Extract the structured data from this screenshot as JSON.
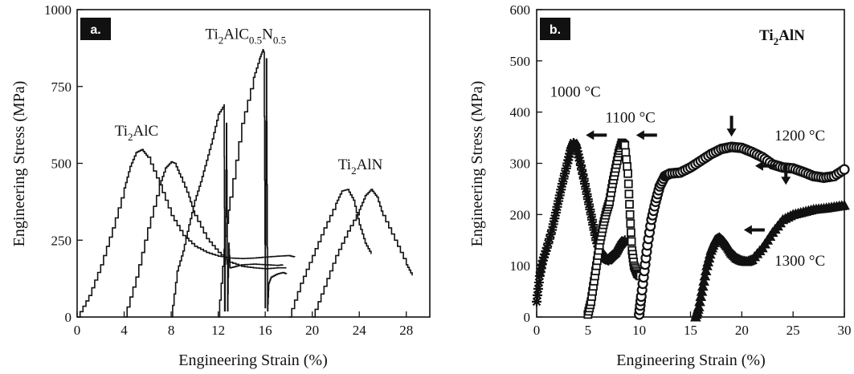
{
  "chart_data": [
    {
      "type": "line",
      "panel_label": "a.",
      "xlabel": "Engineering Strain (%)",
      "ylabel": "Engineering Stress (MPa)",
      "xlim": [
        0,
        30
      ],
      "ylim": [
        0,
        1000
      ],
      "xticks": [
        0,
        4,
        8,
        12,
        16,
        20,
        24,
        28
      ],
      "yticks": [
        0,
        250,
        500,
        750,
        1000
      ],
      "annotations": [
        {
          "label": "Ti",
          "sub": "2",
          "rest": "AlC",
          "sub2": "",
          "rest2": "",
          "sub3": "",
          "x": 3.2,
          "y": 590
        },
        {
          "label": "Ti",
          "sub": "2",
          "rest": "AlC",
          "sub2": "0.5",
          "rest2": "N",
          "sub3": "0.5",
          "x": 10.9,
          "y": 905
        },
        {
          "label": "Ti",
          "sub": "2",
          "rest": "AlN",
          "sub2": "",
          "rest2": "",
          "sub3": "",
          "x": 22.2,
          "y": 480
        }
      ],
      "series": [
        {
          "x": [
            0,
            1,
            2,
            3,
            4,
            4.5,
            5,
            5.5,
            6,
            7,
            8,
            9,
            10,
            11,
            12,
            13,
            14,
            15,
            16,
            17,
            18,
            18.5
          ],
          "y": [
            0,
            70,
            170,
            290,
            420,
            490,
            535,
            545,
            520,
            430,
            330,
            265,
            230,
            210,
            198,
            192,
            190,
            192,
            195,
            198,
            200,
            195
          ]
        },
        {
          "x": [
            4,
            5,
            6,
            7,
            7.5,
            8,
            8.3,
            8.8,
            9.5,
            10,
            11,
            12,
            13,
            14,
            15,
            16,
            17,
            17.8
          ],
          "y": [
            0,
            130,
            290,
            430,
            485,
            505,
            500,
            455,
            390,
            330,
            255,
            210,
            178,
            165,
            160,
            157,
            160,
            160
          ]
        },
        {
          "x": [
            8,
            8.5,
            9,
            9.5,
            10,
            10.5,
            11,
            11.5,
            12,
            12.5,
            12.55,
            12.7,
            12.8,
            12.9,
            13,
            13.5,
            14,
            15,
            16,
            17,
            17.5
          ],
          "y": [
            0,
            150,
            215,
            300,
            380,
            440,
            510,
            580,
            660,
            690,
            20,
            630,
            20,
            240,
            160,
            165,
            170,
            172,
            170,
            168,
            170
          ]
        },
        {
          "x": [
            12,
            12.5,
            13,
            14,
            15,
            15.5,
            15.8,
            15.9,
            16,
            16.1,
            16.2,
            16.3,
            16.5,
            17,
            17.5,
            17.8
          ],
          "y": [
            0,
            220,
            390,
            630,
            780,
            840,
            870,
            860,
            30,
            840,
            20,
            110,
            130,
            140,
            145,
            140
          ]
        },
        {
          "x": [
            18,
            19,
            20,
            21,
            22,
            22.5,
            23,
            23.5,
            24,
            24.5,
            25
          ],
          "y": [
            0,
            110,
            200,
            290,
            370,
            410,
            415,
            380,
            300,
            240,
            205
          ]
        },
        {
          "x": [
            20,
            21,
            22,
            23,
            24,
            24.5,
            25,
            25.5,
            26,
            27,
            28,
            28.5
          ],
          "y": [
            0,
            100,
            200,
            280,
            350,
            395,
            415,
            390,
            330,
            250,
            170,
            135
          ]
        }
      ]
    },
    {
      "type": "scatter",
      "panel_label": "b.",
      "title": "Ti2AlN",
      "title_parts": {
        "main": "Ti",
        "sub": "2",
        "rest": "AlN"
      },
      "xlabel": "Engineering Strain  (%)",
      "ylabel": "Engineering Stress  (MPa)",
      "xlim": [
        0,
        30
      ],
      "ylim": [
        0,
        600
      ],
      "xticks": [
        0,
        5,
        10,
        15,
        20,
        25,
        30
      ],
      "yticks": [
        0,
        100,
        200,
        300,
        400,
        500,
        600
      ],
      "series": [
        {
          "name": "1000 °C",
          "marker": "star",
          "x": [
            0,
            0.3,
            0.6,
            1,
            1.5,
            2,
            2.5,
            3,
            3.3,
            3.6,
            3.9,
            4.2,
            4.6,
            5,
            5.4,
            5.8,
            6.2,
            6.6,
            7,
            7.4,
            7.8,
            8.2,
            8.6
          ],
          "y": [
            30,
            80,
            110,
            135,
            170,
            215,
            260,
            300,
            325,
            340,
            330,
            305,
            270,
            230,
            190,
            150,
            125,
            115,
            110,
            118,
            125,
            140,
            150
          ]
        },
        {
          "name": "1100 °C",
          "marker": "square",
          "x": [
            5,
            5.3,
            5.6,
            5.9,
            6.2,
            6.5,
            6.8,
            7.1,
            7.4,
            7.7,
            8,
            8.3,
            8.6,
            8.9,
            9.1,
            9.3,
            9.5,
            9.8,
            10.1
          ],
          "y": [
            5,
            30,
            70,
            110,
            150,
            180,
            205,
            225,
            260,
            290,
            320,
            340,
            335,
            280,
            200,
            130,
            100,
            85,
            80
          ]
        },
        {
          "name": "1200 °C",
          "marker": "circle",
          "x": [
            10,
            10.2,
            10.5,
            10.8,
            11.2,
            11.6,
            12,
            12.5,
            13,
            14,
            15,
            16,
            17,
            18,
            19,
            20,
            21,
            22,
            23,
            24,
            25,
            26,
            27,
            28,
            29,
            30
          ],
          "y": [
            5,
            40,
            90,
            140,
            190,
            225,
            255,
            275,
            280,
            282,
            292,
            305,
            318,
            328,
            332,
            330,
            322,
            312,
            298,
            292,
            290,
            283,
            275,
            272,
            275,
            288
          ]
        },
        {
          "name": "1300 °C",
          "marker": "triangle",
          "x": [
            15.5,
            15.8,
            16.2,
            16.6,
            17,
            17.4,
            17.8,
            18.2,
            18.6,
            19,
            19.5,
            20,
            20.5,
            21,
            22,
            23,
            24,
            25,
            26,
            27,
            28,
            29,
            30
          ],
          "y": [
            0,
            20,
            60,
            100,
            130,
            150,
            155,
            148,
            138,
            125,
            115,
            110,
            108,
            112,
            135,
            165,
            190,
            200,
            205,
            210,
            212,
            215,
            218
          ]
        }
      ],
      "annotations": [
        {
          "text": "1000 °C",
          "x": 1.3,
          "y": 430
        },
        {
          "text": "1100 °C",
          "x": 6.7,
          "y": 380
        },
        {
          "text": "1200 °C",
          "x": 23.2,
          "y": 345
        },
        {
          "text": "1300 °C",
          "x": 23.2,
          "y": 100
        }
      ],
      "arrows": [
        {
          "dir": "left",
          "x": 4.8,
          "y": 355
        },
        {
          "dir": "left",
          "x": 9.7,
          "y": 355
        },
        {
          "dir": "down",
          "x": 19,
          "y": 352
        },
        {
          "dir": "left",
          "x": 21.3,
          "y": 295
        },
        {
          "dir": "down",
          "x": 24.3,
          "y": 258
        },
        {
          "dir": "left",
          "x": 20.2,
          "y": 170
        }
      ]
    }
  ]
}
